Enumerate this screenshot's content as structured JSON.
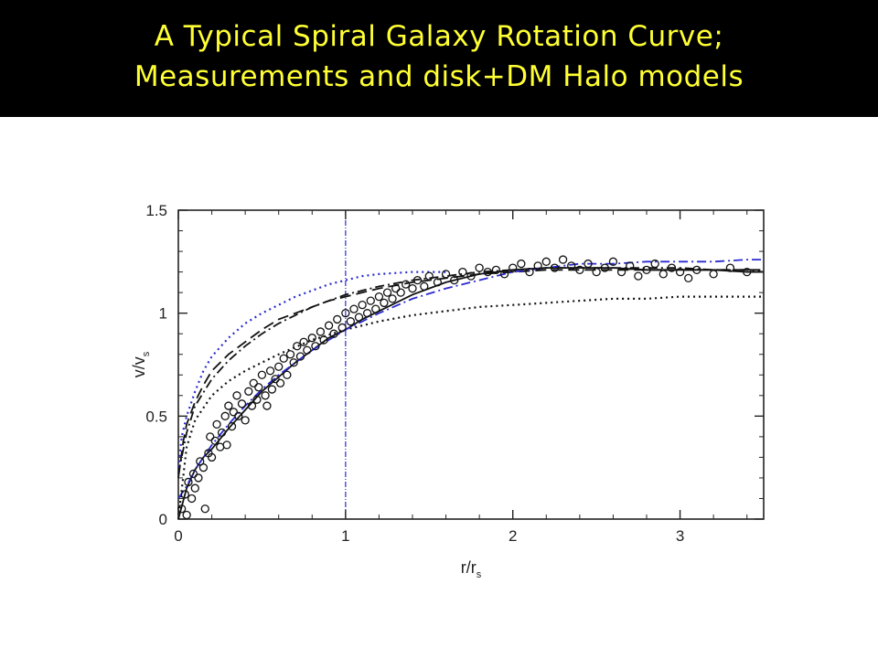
{
  "slide": {
    "title_line1": "A Typical Spiral Galaxy Rotation Curve;",
    "title_line2": "Measurements and disk+DM Halo models"
  },
  "colors": {
    "title_background": "#000000",
    "title_text": "#ffff33",
    "model_blue": "#2a2ad0",
    "data_black": "#111111"
  },
  "chart_data": {
    "type": "scatter",
    "title": "",
    "xlabel": "r/r_s",
    "ylabel": "v/v_s",
    "xlim": [
      0,
      3.5
    ],
    "ylim": [
      0,
      1.5
    ],
    "xticks": [
      0,
      1,
      2,
      3
    ],
    "yticks": [
      0,
      0.5,
      1,
      1.5
    ],
    "grid": false,
    "vertical_marker_x": 1,
    "measurements": {
      "marker": "open-circle",
      "points": [
        [
          0.02,
          0.05
        ],
        [
          0.04,
          0.12
        ],
        [
          0.05,
          0.02
        ],
        [
          0.06,
          0.18
        ],
        [
          0.08,
          0.1
        ],
        [
          0.09,
          0.22
        ],
        [
          0.1,
          0.15
        ],
        [
          0.12,
          0.2
        ],
        [
          0.13,
          0.28
        ],
        [
          0.15,
          0.25
        ],
        [
          0.16,
          0.05
        ],
        [
          0.18,
          0.32
        ],
        [
          0.19,
          0.4
        ],
        [
          0.2,
          0.3
        ],
        [
          0.22,
          0.38
        ],
        [
          0.23,
          0.46
        ],
        [
          0.25,
          0.35
        ],
        [
          0.26,
          0.42
        ],
        [
          0.28,
          0.5
        ],
        [
          0.29,
          0.36
        ],
        [
          0.3,
          0.55
        ],
        [
          0.32,
          0.45
        ],
        [
          0.33,
          0.52
        ],
        [
          0.35,
          0.6
        ],
        [
          0.36,
          0.5
        ],
        [
          0.38,
          0.56
        ],
        [
          0.4,
          0.48
        ],
        [
          0.42,
          0.62
        ],
        [
          0.44,
          0.55
        ],
        [
          0.45,
          0.66
        ],
        [
          0.47,
          0.58
        ],
        [
          0.48,
          0.64
        ],
        [
          0.5,
          0.7
        ],
        [
          0.52,
          0.6
        ],
        [
          0.53,
          0.55
        ],
        [
          0.55,
          0.72
        ],
        [
          0.56,
          0.63
        ],
        [
          0.58,
          0.68
        ],
        [
          0.6,
          0.74
        ],
        [
          0.61,
          0.66
        ],
        [
          0.63,
          0.78
        ],
        [
          0.65,
          0.7
        ],
        [
          0.67,
          0.8
        ],
        [
          0.69,
          0.76
        ],
        [
          0.71,
          0.84
        ],
        [
          0.73,
          0.79
        ],
        [
          0.75,
          0.86
        ],
        [
          0.77,
          0.82
        ],
        [
          0.8,
          0.88
        ],
        [
          0.82,
          0.84
        ],
        [
          0.85,
          0.91
        ],
        [
          0.87,
          0.87
        ],
        [
          0.9,
          0.94
        ],
        [
          0.93,
          0.9
        ],
        [
          0.95,
          0.97
        ],
        [
          0.98,
          0.93
        ],
        [
          1.0,
          1.0
        ],
        [
          1.03,
          0.96
        ],
        [
          1.05,
          1.02
        ],
        [
          1.08,
          0.98
        ],
        [
          1.1,
          1.04
        ],
        [
          1.13,
          1.0
        ],
        [
          1.15,
          1.06
        ],
        [
          1.18,
          1.02
        ],
        [
          1.2,
          1.08
        ],
        [
          1.23,
          1.05
        ],
        [
          1.25,
          1.1
        ],
        [
          1.28,
          1.07
        ],
        [
          1.3,
          1.12
        ],
        [
          1.33,
          1.1
        ],
        [
          1.36,
          1.14
        ],
        [
          1.4,
          1.12
        ],
        [
          1.43,
          1.16
        ],
        [
          1.47,
          1.13
        ],
        [
          1.5,
          1.18
        ],
        [
          1.55,
          1.15
        ],
        [
          1.6,
          1.19
        ],
        [
          1.65,
          1.16
        ],
        [
          1.7,
          1.2
        ],
        [
          1.75,
          1.18
        ],
        [
          1.8,
          1.22
        ],
        [
          1.85,
          1.2
        ],
        [
          1.9,
          1.21
        ],
        [
          1.95,
          1.19
        ],
        [
          2.0,
          1.22
        ],
        [
          2.05,
          1.24
        ],
        [
          2.1,
          1.2
        ],
        [
          2.15,
          1.23
        ],
        [
          2.2,
          1.25
        ],
        [
          2.25,
          1.22
        ],
        [
          2.3,
          1.26
        ],
        [
          2.35,
          1.23
        ],
        [
          2.4,
          1.21
        ],
        [
          2.45,
          1.24
        ],
        [
          2.5,
          1.2
        ],
        [
          2.55,
          1.22
        ],
        [
          2.6,
          1.25
        ],
        [
          2.65,
          1.2
        ],
        [
          2.7,
          1.23
        ],
        [
          2.75,
          1.18
        ],
        [
          2.8,
          1.21
        ],
        [
          2.85,
          1.24
        ],
        [
          2.9,
          1.19
        ],
        [
          2.95,
          1.22
        ],
        [
          3.0,
          1.2
        ],
        [
          3.05,
          1.17
        ],
        [
          3.1,
          1.21
        ],
        [
          3.2,
          1.19
        ],
        [
          3.3,
          1.22
        ],
        [
          3.4,
          1.2
        ]
      ]
    },
    "series": [
      {
        "style": "solid",
        "color": "#111111",
        "x": [
          0,
          0.05,
          0.1,
          0.15,
          0.2,
          0.3,
          0.4,
          0.5,
          0.6,
          0.7,
          0.8,
          0.9,
          1.0,
          1.1,
          1.2,
          1.3,
          1.4,
          1.5,
          1.6,
          1.7,
          1.8,
          1.9,
          2.0,
          2.2,
          2.4,
          2.6,
          2.8,
          3.0,
          3.2,
          3.4,
          3.5
        ],
        "y": [
          0,
          0.15,
          0.24,
          0.3,
          0.34,
          0.44,
          0.53,
          0.62,
          0.69,
          0.76,
          0.82,
          0.88,
          0.92,
          0.97,
          1.01,
          1.05,
          1.09,
          1.12,
          1.15,
          1.17,
          1.19,
          1.2,
          1.21,
          1.22,
          1.22,
          1.22,
          1.21,
          1.21,
          1.21,
          1.2,
          1.2
        ]
      },
      {
        "style": "dashed",
        "color": "#111111",
        "x": [
          0,
          0.03,
          0.05,
          0.1,
          0.15,
          0.2,
          0.3,
          0.4,
          0.5,
          0.6,
          0.7,
          0.8,
          0.9,
          1.0,
          1.2,
          1.4,
          1.6,
          1.8,
          2.0,
          2.2,
          2.4,
          2.6,
          2.8,
          3.0,
          3.2,
          3.4,
          3.5
        ],
        "y": [
          0.2,
          0.38,
          0.46,
          0.57,
          0.65,
          0.72,
          0.8,
          0.86,
          0.92,
          0.97,
          1.0,
          1.03,
          1.06,
          1.08,
          1.12,
          1.15,
          1.17,
          1.19,
          1.2,
          1.21,
          1.21,
          1.21,
          1.21,
          1.21,
          1.21,
          1.21,
          1.21
        ]
      },
      {
        "style": "dotted",
        "color": "#111111",
        "x": [
          0,
          0.05,
          0.1,
          0.2,
          0.3,
          0.4,
          0.5,
          0.6,
          0.8,
          1.0,
          1.2,
          1.4,
          1.6,
          1.8,
          2.0,
          2.2,
          2.4,
          2.6,
          2.8,
          3.0,
          3.2,
          3.4,
          3.5
        ],
        "y": [
          0,
          0.35,
          0.48,
          0.6,
          0.67,
          0.72,
          0.76,
          0.8,
          0.87,
          0.92,
          0.96,
          0.99,
          1.01,
          1.03,
          1.04,
          1.05,
          1.06,
          1.07,
          1.07,
          1.08,
          1.08,
          1.08,
          1.08
        ]
      },
      {
        "style": "dash-dot",
        "color": "#2a2ad0",
        "x": [
          0,
          0.05,
          0.1,
          0.2,
          0.3,
          0.4,
          0.5,
          0.6,
          0.7,
          0.8,
          0.9,
          1.0,
          1.2,
          1.4,
          1.6,
          1.8,
          2.0,
          2.2,
          2.4,
          2.6,
          2.8,
          3.0,
          3.2,
          3.4,
          3.5
        ],
        "y": [
          0.1,
          0.16,
          0.24,
          0.36,
          0.46,
          0.55,
          0.63,
          0.7,
          0.76,
          0.82,
          0.87,
          0.92,
          1.0,
          1.07,
          1.12,
          1.16,
          1.2,
          1.22,
          1.24,
          1.24,
          1.25,
          1.25,
          1.25,
          1.26,
          1.26
        ]
      },
      {
        "style": "dotted",
        "color": "#2a2ad0",
        "x": [
          0,
          0.02,
          0.05,
          0.1,
          0.15,
          0.2,
          0.3,
          0.4,
          0.5,
          0.6,
          0.7,
          0.8,
          0.9,
          1.0,
          1.1,
          1.2,
          1.4,
          1.6
        ],
        "y": [
          0.25,
          0.4,
          0.5,
          0.62,
          0.72,
          0.79,
          0.88,
          0.95,
          1.0,
          1.04,
          1.08,
          1.11,
          1.14,
          1.16,
          1.18,
          1.19,
          1.2,
          1.2
        ]
      },
      {
        "style": "dash-dot",
        "color": "#111111",
        "x": [
          0,
          0.03,
          0.05,
          0.1,
          0.2,
          0.3,
          0.4,
          0.5,
          0.6,
          0.7,
          0.8,
          0.9,
          1.0,
          1.2,
          1.4,
          1.6,
          1.8,
          2.0,
          2.2,
          2.4,
          2.6,
          2.8,
          3.0,
          3.2,
          3.4,
          3.5
        ],
        "y": [
          0.22,
          0.34,
          0.42,
          0.55,
          0.68,
          0.77,
          0.84,
          0.9,
          0.95,
          0.99,
          1.03,
          1.06,
          1.09,
          1.13,
          1.16,
          1.18,
          1.2,
          1.21,
          1.22,
          1.22,
          1.22,
          1.22,
          1.22,
          1.21,
          1.21,
          1.2
        ]
      }
    ]
  }
}
